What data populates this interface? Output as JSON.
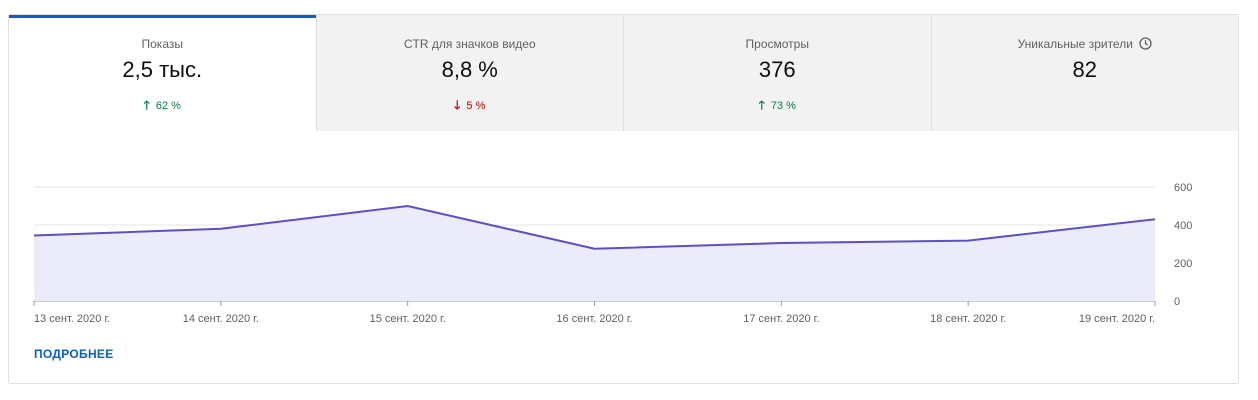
{
  "tabs": [
    {
      "label": "Показы",
      "value": "2,5 тыс.",
      "delta": "62 %",
      "direction": "up",
      "selected": true
    },
    {
      "label": "CTR для значков видео",
      "value": "8,8 %",
      "delta": "5 %",
      "direction": "down",
      "selected": false
    },
    {
      "label": "Просмотры",
      "value": "376",
      "delta": "73 %",
      "direction": "up",
      "selected": false
    },
    {
      "label": "Уникальные зрители",
      "value": "82",
      "delta": "",
      "direction": "",
      "selected": false,
      "icon": "clock-icon"
    }
  ],
  "colors": {
    "accent": "#065fd4",
    "line": "#5c4fc7",
    "area": "#ecebfa",
    "up": "#0b8043",
    "down": "#cc0000"
  },
  "more_link": "ПОДРОБНЕЕ",
  "chart_data": {
    "type": "area",
    "categories": [
      "13 сент. 2020 г.",
      "14 сент. 2020 г.",
      "15 сент. 2020 г.",
      "16 сент. 2020 г.",
      "17 сент. 2020 г.",
      "18 сент. 2020 г.",
      "19 сент. 2020 г."
    ],
    "values": [
      345,
      380,
      500,
      275,
      305,
      318,
      430
    ],
    "ylim": [
      0,
      600
    ],
    "yticks": [
      "0",
      "200",
      "400",
      "600"
    ],
    "grid": true
  }
}
